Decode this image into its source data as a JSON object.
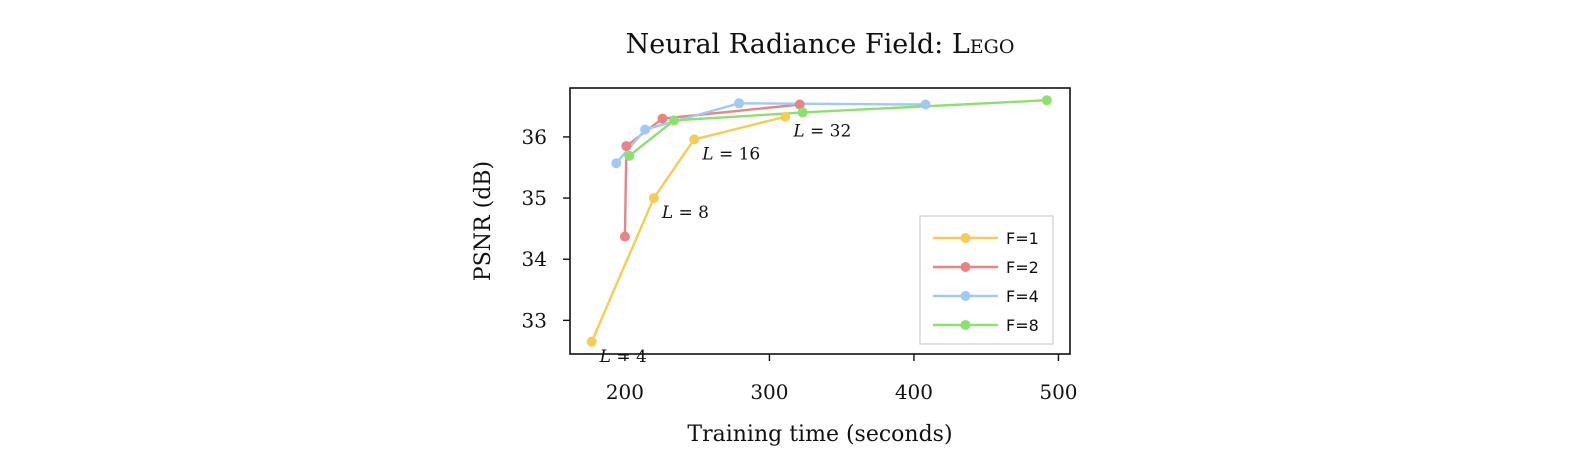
{
  "chart_data": {
    "type": "line",
    "title": "Neural Radiance Field: Lego",
    "xlabel": "Training time (seconds)",
    "ylabel": "PSNR (dB)",
    "xlim": [
      162,
      508
    ],
    "ylim": [
      32.45,
      36.8
    ],
    "xticks": [
      200,
      300,
      400,
      500
    ],
    "yticks": [
      33,
      34,
      35,
      36
    ],
    "grid": false,
    "legend_position": "bottom-right",
    "series": [
      {
        "name": "F=1",
        "color": "#f6cc56",
        "points": [
          [
            177,
            32.65
          ],
          [
            220,
            35.0
          ],
          [
            248,
            35.96
          ],
          [
            311,
            36.33
          ]
        ]
      },
      {
        "name": "F=2",
        "color": "#ea8484",
        "points": [
          [
            200,
            34.37
          ],
          [
            201,
            35.85
          ],
          [
            226,
            36.3
          ],
          [
            321,
            36.53
          ]
        ]
      },
      {
        "name": "F=4",
        "color": "#9fcaf5",
        "points": [
          [
            194,
            35.57
          ],
          [
            214,
            36.12
          ],
          [
            279,
            36.55
          ],
          [
            408,
            36.53
          ]
        ]
      },
      {
        "name": "F=8",
        "color": "#8ee06e",
        "points": [
          [
            203,
            35.69
          ],
          [
            234,
            36.27
          ],
          [
            323,
            36.4
          ],
          [
            492,
            36.6
          ]
        ]
      }
    ],
    "annotations": [
      {
        "text": "L = 4",
        "x": 177,
        "y": 32.65
      },
      {
        "text": "L = 8",
        "x": 220,
        "y": 35.0
      },
      {
        "text": "L = 16",
        "x": 248,
        "y": 35.96
      },
      {
        "text": "L = 32",
        "x": 311,
        "y": 36.33
      }
    ]
  }
}
